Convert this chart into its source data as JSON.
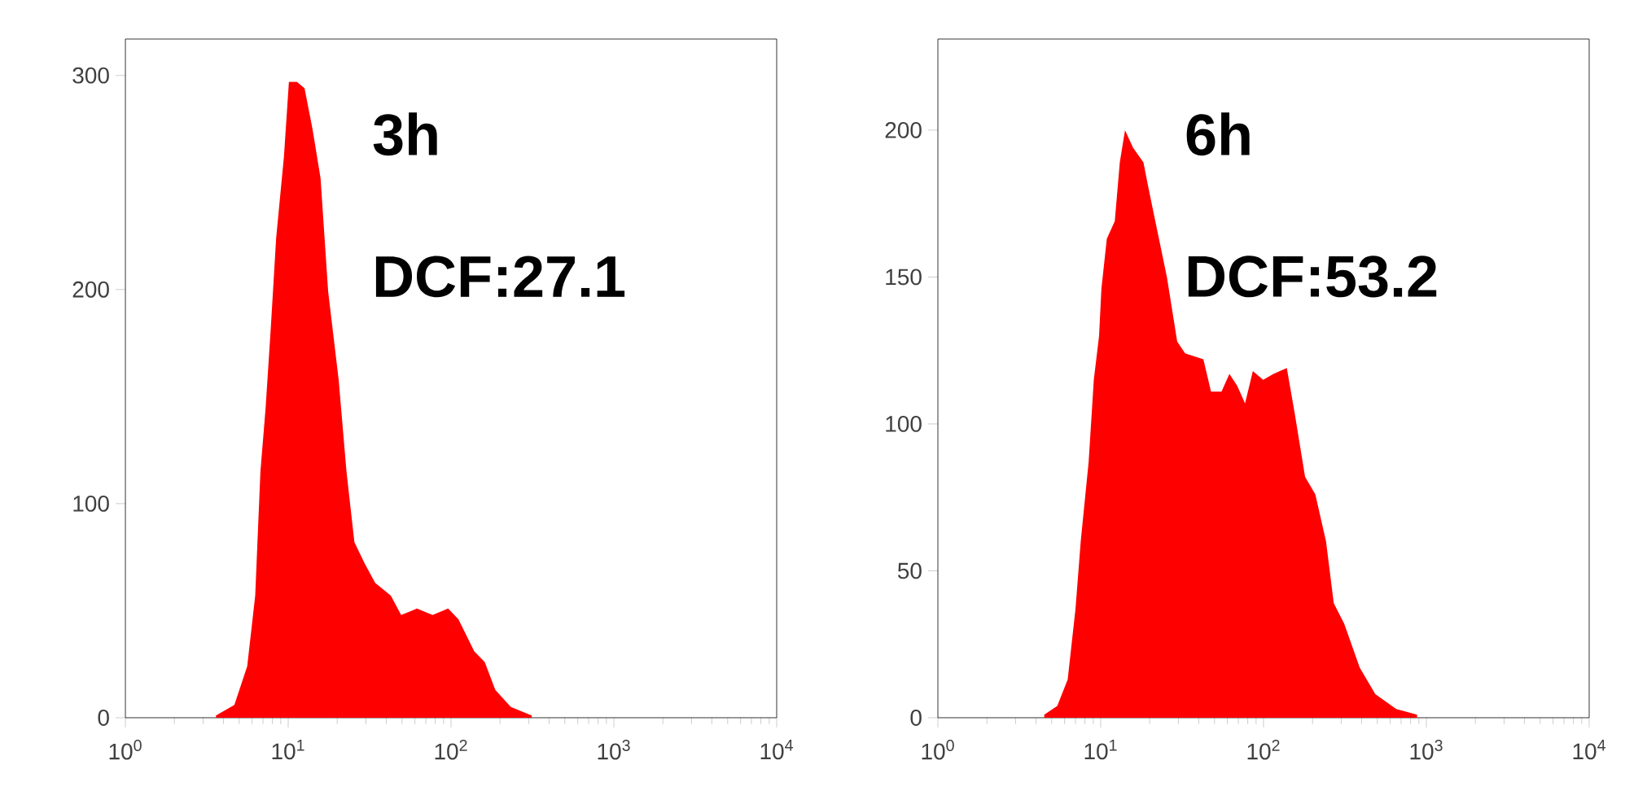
{
  "chart_data": [
    {
      "type": "area",
      "log": "x",
      "xlim": [
        1,
        10000
      ],
      "ylim": [
        0,
        317
      ],
      "xticks": [
        {
          "value": 1,
          "label": "10$^{0}$"
        },
        {
          "value": 10,
          "label": "10$^{1}$"
        },
        {
          "value": 100,
          "label": "10$^{2}$"
        },
        {
          "value": 1000,
          "label": "10$^{3}$"
        },
        {
          "value": 10000,
          "label": "10$^{4}$"
        }
      ],
      "yticks": [
        0,
        100,
        200,
        300
      ],
      "annotations": [
        "3h",
        "DCF:27.1"
      ],
      "series": [
        {
          "color": "#ff0000",
          "x": [
            3.6,
            4.67,
            5.6,
            6.27,
            6.75,
            7.27,
            7.83,
            8.43,
            9.41,
            10.1,
            11.3,
            12.6,
            14.1,
            15.8,
            17.6,
            20.4,
            22.8,
            25.5,
            29.5,
            34.2,
            42.7,
            49.4,
            61.7,
            77,
            96,
            111,
            139,
            161,
            187,
            233,
            313
          ],
          "values": [
            1,
            6,
            24,
            57,
            115,
            145,
            183,
            224,
            262,
            297,
            297,
            294,
            275,
            252,
            199,
            158,
            115,
            82,
            72,
            63,
            57,
            48,
            51,
            48,
            51,
            46,
            31,
            26,
            13,
            5,
            1
          ]
        }
      ]
    },
    {
      "type": "area",
      "log": "x",
      "xlim": [
        1,
        10000
      ],
      "ylim": [
        0,
        231
      ],
      "xticks": [
        {
          "value": 1,
          "label": "10$^{0}$"
        },
        {
          "value": 10,
          "label": "10$^{1}$"
        },
        {
          "value": 100,
          "label": "10$^{2}$"
        },
        {
          "value": 1000,
          "label": "10$^{3}$"
        },
        {
          "value": 10000,
          "label": "10$^{4}$"
        }
      ],
      "yticks": [
        0,
        50,
        100,
        150,
        200
      ],
      "annotations": [
        "6h",
        "DCF:53.2"
      ],
      "series": [
        {
          "color": "#ff0000",
          "x": [
            4.5,
            5.41,
            6.27,
            7.0,
            7.54,
            8.43,
            9.07,
            9.77,
            10.1,
            10.9,
            12.2,
            13.1,
            14.1,
            15.8,
            18.3,
            19.7,
            22.8,
            25.5,
            29.5,
            33,
            42.7,
            47.6,
            55.2,
            61.7,
            68.9,
            77,
            86,
            99.5,
            115,
            139,
            155,
            180,
            208,
            242,
            270,
            313,
            390,
            486,
            653,
            877
          ],
          "values": [
            1,
            4,
            13,
            37,
            60,
            87,
            115,
            130,
            146,
            163,
            169,
            189,
            200,
            194,
            189,
            180,
            163,
            150,
            128,
            124,
            122,
            111,
            111,
            117,
            113,
            107,
            118,
            115,
            117,
            119,
            104,
            82,
            76,
            60,
            39,
            32,
            17,
            8,
            3,
            1
          ]
        }
      ]
    }
  ]
}
